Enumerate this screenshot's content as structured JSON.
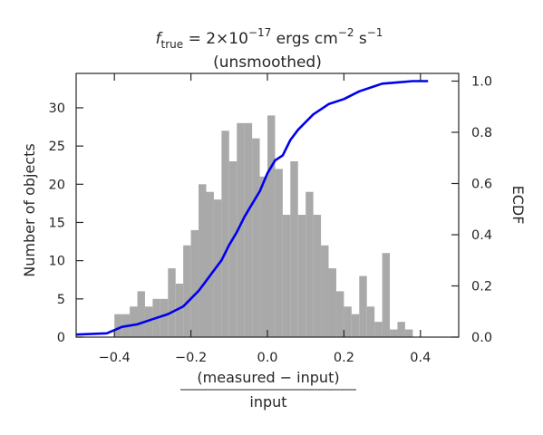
{
  "chart_data": {
    "type": "bar",
    "title_line1_base": "f",
    "title_line1_sub": "true",
    "title_line1_mid": " = 2×10",
    "title_line1_exp": "−17",
    "title_line1_unit": " ergs cm",
    "title_line1_unit_exp": "−2",
    "title_line1_unit2": " s",
    "title_line1_unit2_exp": "−1",
    "title_line2": "(unsmoothed)",
    "xlabel_numerator": "(measured − input)",
    "xlabel_denominator": "input",
    "ylabel_left": "Number of objects",
    "ylabel_right": "ECDF",
    "xlim": [
      -0.5,
      0.5
    ],
    "ylim_left": [
      0,
      34.5
    ],
    "ylim_right": [
      0,
      1.03
    ],
    "xticks": [
      -0.4,
      -0.2,
      0.0,
      0.2,
      0.4
    ],
    "xtick_labels": [
      "−0.4",
      "−0.2",
      "0.0",
      "0.2",
      "0.4"
    ],
    "yticks_left": [
      0,
      5,
      10,
      15,
      20,
      25,
      30
    ],
    "ytick_labels_left": [
      "0",
      "5",
      "10",
      "15",
      "20",
      "25",
      "30"
    ],
    "yticks_right": [
      0,
      0.2,
      0.4,
      0.6,
      0.8,
      1.0
    ],
    "ytick_labels_right": [
      "0.0",
      "0.2",
      "0.4",
      "0.6",
      "0.8",
      "1.0"
    ],
    "bin_width": 0.02,
    "bin_left_edges": [
      -0.5,
      -0.48,
      -0.46,
      -0.44,
      -0.42,
      -0.4,
      -0.38,
      -0.36,
      -0.34,
      -0.32,
      -0.3,
      -0.28,
      -0.26,
      -0.24,
      -0.22,
      -0.2,
      -0.18,
      -0.16,
      -0.14,
      -0.12,
      -0.1,
      -0.08,
      -0.06,
      -0.04,
      -0.02,
      0.0,
      0.02,
      0.04,
      0.06,
      0.08,
      0.1,
      0.12,
      0.14,
      0.16,
      0.18,
      0.2,
      0.22,
      0.24,
      0.26,
      0.28,
      0.3,
      0.32,
      0.34,
      0.36,
      0.38,
      0.4
    ],
    "bin_counts": [
      0,
      0,
      0,
      0,
      0,
      3,
      3,
      4,
      6,
      4,
      5,
      5,
      9,
      7,
      12,
      14,
      20,
      19,
      18,
      27,
      23,
      28,
      28,
      26,
      21,
      29,
      22,
      16,
      23,
      16,
      19,
      16,
      12,
      9,
      6,
      4,
      3,
      8,
      4,
      2,
      11,
      1,
      2,
      1,
      0,
      0
    ],
    "ecdf": {
      "name": "ECDF",
      "x": [
        -0.5,
        -0.42,
        -0.38,
        -0.34,
        -0.3,
        -0.26,
        -0.22,
        -0.2,
        -0.18,
        -0.16,
        -0.14,
        -0.12,
        -0.1,
        -0.08,
        -0.06,
        -0.04,
        -0.02,
        0.0,
        0.02,
        0.04,
        0.06,
        0.08,
        0.1,
        0.12,
        0.14,
        0.16,
        0.2,
        0.24,
        0.28,
        0.3,
        0.34,
        0.38,
        0.42
      ],
      "y": [
        0.01,
        0.015,
        0.04,
        0.05,
        0.07,
        0.09,
        0.12,
        0.15,
        0.18,
        0.22,
        0.26,
        0.3,
        0.36,
        0.41,
        0.47,
        0.52,
        0.57,
        0.64,
        0.69,
        0.71,
        0.77,
        0.81,
        0.84,
        0.87,
        0.89,
        0.91,
        0.93,
        0.96,
        0.98,
        0.99,
        0.995,
        1.0,
        1.0
      ]
    },
    "colors": {
      "bars": "#a9a9a9",
      "ecdf": "#0000ee"
    },
    "grid": false,
    "legend": "none"
  }
}
